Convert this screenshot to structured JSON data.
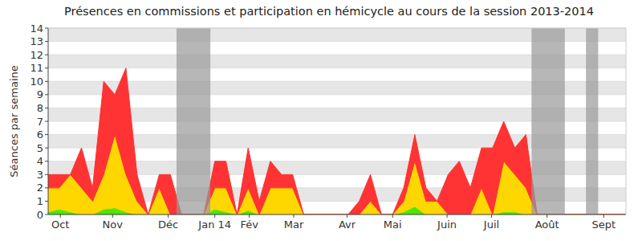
{
  "chart_data": {
    "type": "area",
    "stacked": true,
    "title": "Présences en commissions et participation en hémicycle au cours de la session 2013-2014",
    "y_label": "Séances par semaine",
    "x": [
      0,
      1,
      2,
      3,
      4,
      5,
      6,
      7,
      8,
      9,
      10,
      11,
      12,
      13,
      14,
      15,
      16,
      17,
      18,
      19,
      20,
      21,
      22,
      23,
      24,
      25,
      26,
      27,
      28,
      29,
      30,
      31,
      32,
      33,
      34,
      35,
      36,
      37,
      38,
      39,
      40,
      41,
      42,
      43,
      44,
      45,
      46,
      47,
      48,
      49,
      50,
      51,
      52
    ],
    "series": [
      {
        "color": "#4ce600",
        "values": [
          0.2,
          0.4,
          0.2,
          0,
          0,
          0.4,
          0.5,
          0.2,
          0,
          0,
          0,
          0,
          0,
          0,
          0,
          0.4,
          0.2,
          0,
          0.3,
          0,
          0,
          0,
          0,
          0,
          0,
          0,
          0,
          0,
          0,
          0,
          0,
          0,
          0.2,
          0.6,
          0,
          0,
          0,
          0,
          0,
          0,
          0,
          0.2,
          0.2,
          0,
          0,
          0,
          0,
          0,
          0,
          0,
          0,
          0,
          0
        ]
      },
      {
        "color": "#ffd700",
        "values": [
          1.8,
          1.6,
          2.8,
          2,
          1,
          2.6,
          5.5,
          2.8,
          1,
          0,
          2,
          0,
          0,
          0,
          0,
          1.6,
          1.8,
          0,
          1.7,
          0,
          2,
          2,
          2,
          0,
          0,
          0,
          0,
          0,
          0,
          1,
          0,
          0,
          0.8,
          3.4,
          1,
          1,
          0,
          0,
          0,
          2,
          0,
          3.8,
          2.8,
          2,
          0,
          0,
          0,
          0,
          0,
          0,
          0,
          0,
          0
        ]
      },
      {
        "color": "#ff3333",
        "values": [
          1,
          1,
          0,
          3,
          1,
          7,
          3,
          8,
          2,
          0,
          1,
          3,
          0,
          0,
          0,
          2,
          2,
          0,
          3,
          1,
          2,
          1,
          1,
          0,
          0,
          0,
          0,
          0,
          1,
          2,
          0,
          0,
          1,
          2,
          1,
          0,
          3,
          4,
          2,
          3,
          5,
          3,
          2,
          4,
          0,
          0,
          0,
          0,
          0,
          0,
          0,
          0,
          0
        ]
      }
    ],
    "bands": [
      {
        "from": 11.55,
        "to": 14.6
      },
      {
        "from": 43.5,
        "to": 46.5
      },
      {
        "from": 48.4,
        "to": 49.5
      }
    ],
    "xlim": [
      0,
      52
    ],
    "xticks": [
      {
        "value": 1.1,
        "label": "Oct"
      },
      {
        "value": 5.8,
        "label": "Nov"
      },
      {
        "value": 10.8,
        "label": "Déc"
      },
      {
        "value": 15,
        "label": "Jan 14"
      },
      {
        "value": 18.1,
        "label": "Fév"
      },
      {
        "value": 22.1,
        "label": "Mar"
      },
      {
        "value": 26.9,
        "label": "Avr"
      },
      {
        "value": 31,
        "label": "Mai"
      },
      {
        "value": 35.9,
        "label": "Juin"
      },
      {
        "value": 39.9,
        "label": "Juil"
      },
      {
        "value": 44.9,
        "label": "Août"
      },
      {
        "value": 50,
        "label": "Sept"
      }
    ],
    "ylim": [
      0,
      14
    ],
    "yticks": [
      0,
      1,
      2,
      3,
      4,
      5,
      6,
      7,
      8,
      9,
      10,
      11,
      12,
      13,
      14
    ],
    "grid": true
  }
}
